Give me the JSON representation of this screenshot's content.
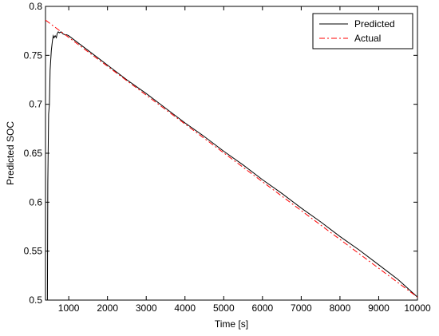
{
  "chart_data": {
    "type": "line",
    "xlabel": "Time [s]",
    "ylabel": "Predicted SOC",
    "xlim": [
      400,
      10000
    ],
    "ylim": [
      0.5,
      0.8
    ],
    "xticks": [
      1000,
      2000,
      3000,
      4000,
      5000,
      6000,
      7000,
      8000,
      9000,
      10000
    ],
    "xtick_labels": [
      "1000",
      "2000",
      "3000",
      "4000",
      "5000",
      "6000",
      "7000",
      "8000",
      "9000",
      "10000"
    ],
    "yticks": [
      0.5,
      0.55,
      0.6,
      0.65,
      0.7,
      0.75,
      0.8
    ],
    "ytick_labels": [
      "0.5",
      "0.55",
      "0.6",
      "0.65",
      "0.7",
      "0.75",
      "0.8"
    ],
    "grid": false,
    "legend_position": "top-right",
    "series": [
      {
        "name": "Predicted",
        "color": "#000000",
        "style": "solid",
        "x": [
          450,
          460,
          480,
          500,
          520,
          550,
          580,
          600,
          620,
          650,
          680,
          700,
          730,
          760,
          800,
          850,
          900,
          950,
          1000,
          1500,
          2000,
          2500,
          3000,
          3500,
          4000,
          4500,
          5000,
          5500,
          6000,
          6500,
          7000,
          7500,
          8000,
          8500,
          9000,
          9500,
          10000
        ],
        "y": [
          0.5,
          0.62,
          0.69,
          0.7,
          0.735,
          0.755,
          0.765,
          0.77,
          0.768,
          0.77,
          0.768,
          0.772,
          0.774,
          0.773,
          0.774,
          0.772,
          0.771,
          0.771,
          0.77,
          0.755,
          0.74,
          0.725,
          0.711,
          0.696,
          0.681,
          0.667,
          0.652,
          0.638,
          0.623,
          0.609,
          0.594,
          0.58,
          0.565,
          0.551,
          0.536,
          0.521,
          0.503
        ]
      },
      {
        "name": "Actual",
        "color": "#ff0000",
        "style": "dash-dot",
        "x": [
          400,
          10000
        ],
        "y": [
          0.786,
          0.503
        ]
      }
    ]
  }
}
